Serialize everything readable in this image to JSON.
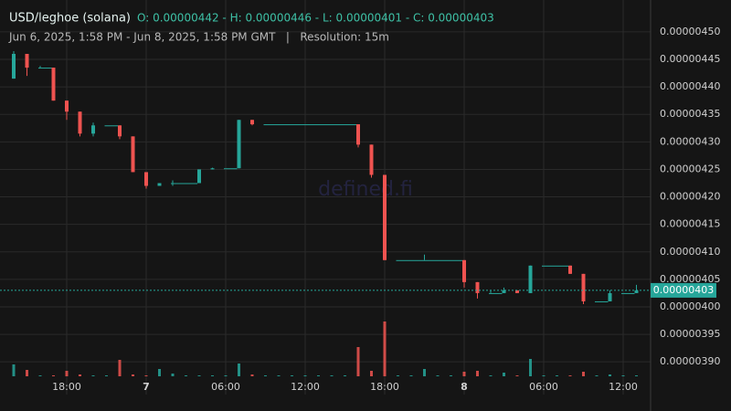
{
  "chart_data": {
    "type": "candlestick",
    "title": "USD/leghoe (solana)",
    "ohlc_text": "O: 0.00000442 - H: 0.00000446 - L: 0.00000401 - C: 0.00000403",
    "subtitle": "Jun 6, 2025, 1:58 PM - Jun 8, 2025, 1:58 PM GMT   |   Resolution: 15m",
    "watermark": "defined.fi",
    "price_tag": "0.00000403",
    "up_color": "#26a69a",
    "down_color": "#ef5350",
    "grid": true,
    "categories": [
      null,
      null,
      null,
      null,
      "18:00",
      null,
      null,
      null,
      null,
      null,
      "7",
      null,
      null,
      null,
      null,
      null,
      "06:00",
      null,
      null,
      null,
      null,
      null,
      "12:00",
      null,
      null,
      null,
      null,
      null,
      "18:00",
      null,
      null,
      null,
      null,
      null,
      "8",
      null,
      null,
      null,
      null,
      null,
      "06:00",
      null,
      null,
      null,
      null,
      null,
      "12:00",
      null
    ],
    "open": [
      4.415e-06,
      4.46e-06,
      4.435e-06,
      4.435e-06,
      4.375e-06,
      4.355e-06,
      4.315e-06,
      4.33e-06,
      4.33e-06,
      4.31e-06,
      4.245e-06,
      4.22e-06,
      4.225e-06,
      4.225e-06,
      4.225e-06,
      4.25e-06,
      4.252e-06,
      4.252e-06,
      4.34e-06,
      4.332e-06,
      4.332e-06,
      4.332e-06,
      4.332e-06,
      4.332e-06,
      4.332e-06,
      4.332e-06,
      4.332e-06,
      4.295e-06,
      4.24e-06,
      4.085e-06,
      4.085e-06,
      4.085e-06,
      4.085e-06,
      4.085e-06,
      4.085e-06,
      4.045e-06,
      4.025e-06,
      4.025e-06,
      4.03e-06,
      4.025e-06,
      4.075e-06,
      4.075e-06,
      4.075e-06,
      4.06e-06,
      4.01e-06,
      4.01e-06,
      4.025e-06,
      4.025e-06
    ],
    "high": [
      4.465e-06,
      4.46e-06,
      4.438e-06,
      4.435e-06,
      4.375e-06,
      4.355e-06,
      4.335e-06,
      4.33e-06,
      4.33e-06,
      4.31e-06,
      4.245e-06,
      4.225e-06,
      4.23e-06,
      4.225e-06,
      4.25e-06,
      4.253e-06,
      4.252e-06,
      4.34e-06,
      4.34e-06,
      4.332e-06,
      4.332e-06,
      4.332e-06,
      4.332e-06,
      4.332e-06,
      4.332e-06,
      4.332e-06,
      4.332e-06,
      4.295e-06,
      4.24e-06,
      4.085e-06,
      4.085e-06,
      4.095e-06,
      4.085e-06,
      4.085e-06,
      4.085e-06,
      4.045e-06,
      4.03e-06,
      4.035e-06,
      4.03e-06,
      4.075e-06,
      4.075e-06,
      4.075e-06,
      4.075e-06,
      4.06e-06,
      4.01e-06,
      4.03e-06,
      4.025e-06,
      4.04e-06
    ],
    "low": [
      4.415e-06,
      4.42e-06,
      4.435e-06,
      4.375e-06,
      4.34e-06,
      4.31e-06,
      4.31e-06,
      4.33e-06,
      4.305e-06,
      4.245e-06,
      4.215e-06,
      4.22e-06,
      4.22e-06,
      4.225e-06,
      4.225e-06,
      4.25e-06,
      4.252e-06,
      4.252e-06,
      4.33e-06,
      4.332e-06,
      4.332e-06,
      4.332e-06,
      4.332e-06,
      4.332e-06,
      4.332e-06,
      4.332e-06,
      4.29e-06,
      4.235e-06,
      4.085e-06,
      4.085e-06,
      4.085e-06,
      4.085e-06,
      4.085e-06,
      4.085e-06,
      4.035e-06,
      4.015e-06,
      4.025e-06,
      4.025e-06,
      4.025e-06,
      4.025e-06,
      4.075e-06,
      4.075e-06,
      4.06e-06,
      4.005e-06,
      4.01e-06,
      4.01e-06,
      4.025e-06,
      4.025e-06
    ],
    "close": [
      4.46e-06,
      4.435e-06,
      4.435e-06,
      4.375e-06,
      4.355e-06,
      4.315e-06,
      4.33e-06,
      4.33e-06,
      4.31e-06,
      4.245e-06,
      4.22e-06,
      4.225e-06,
      4.225e-06,
      4.225e-06,
      4.25e-06,
      4.252e-06,
      4.252e-06,
      4.34e-06,
      4.332e-06,
      4.332e-06,
      4.332e-06,
      4.332e-06,
      4.332e-06,
      4.332e-06,
      4.332e-06,
      4.332e-06,
      4.295e-06,
      4.24e-06,
      4.085e-06,
      4.085e-06,
      4.085e-06,
      4.085e-06,
      4.085e-06,
      4.085e-06,
      4.045e-06,
      4.025e-06,
      4.025e-06,
      4.03e-06,
      4.025e-06,
      4.075e-06,
      4.075e-06,
      4.075e-06,
      4.06e-06,
      4.01e-06,
      4.01e-06,
      4.025e-06,
      4.025e-06,
      4.03e-06
    ],
    "volume": [
      13,
      7,
      1,
      1,
      6,
      2,
      1,
      1,
      18,
      2,
      1,
      8,
      3,
      1,
      1,
      1,
      1,
      14,
      2,
      1,
      1,
      1,
      1,
      1,
      1,
      1,
      32,
      6,
      60,
      1,
      1,
      8,
      1,
      1,
      5,
      6,
      1,
      4,
      1,
      19,
      1,
      1,
      1,
      5,
      1,
      2,
      1,
      1
    ],
    "vlim": [
      0,
      100
    ],
    "ylim": [
      4.558e-06,
      3.8405e-06
    ],
    "yticks": [
      {
        "value": 4.5e-06,
        "label": "0.00000450"
      },
      {
        "value": 4.45e-06,
        "label": "0.00000445"
      },
      {
        "value": 4.4e-06,
        "label": "0.00000440"
      },
      {
        "value": 4.35e-06,
        "label": "0.00000435"
      },
      {
        "value": 4.3e-06,
        "label": "0.00000430"
      },
      {
        "value": 4.25e-06,
        "label": "0.00000425"
      },
      {
        "value": 4.2e-06,
        "label": "0.00000420"
      },
      {
        "value": 4.15e-06,
        "label": "0.00000415"
      },
      {
        "value": 4.1e-06,
        "label": "0.00000410"
      },
      {
        "value": 4.05e-06,
        "label": "0.00000405"
      },
      {
        "value": 4e-06,
        "label": "0.00000400"
      },
      {
        "value": 3.95e-06,
        "label": "0.00000395"
      },
      {
        "value": 3.9e-06,
        "label": "0.00000390"
      }
    ]
  }
}
